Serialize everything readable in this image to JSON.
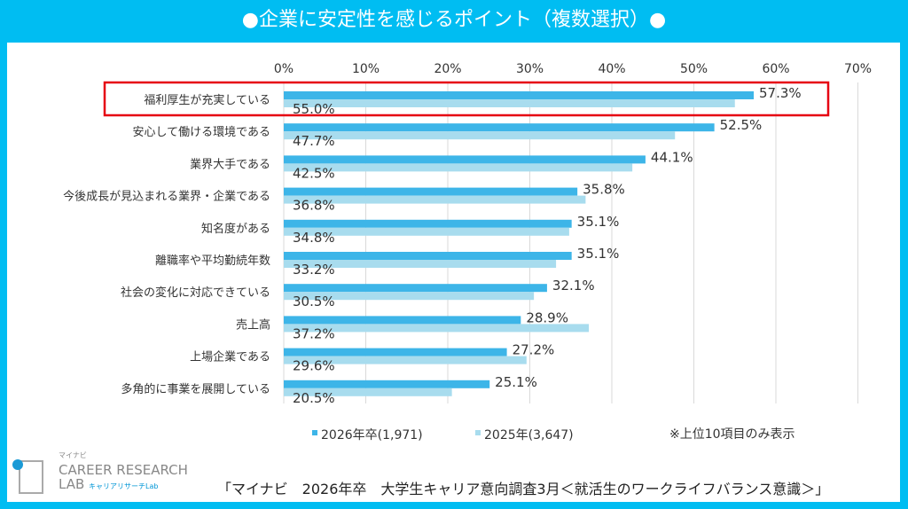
{
  "title": "●企業に安定性を感じるポイント（複数選択）●",
  "chart_data": {
    "type": "bar",
    "orientation": "horizontal",
    "categories": [
      "福利厚生が充実している",
      "安心して働ける環境である",
      "業界大手である",
      "今後成長が見込まれる業界・企業である",
      "知名度がある",
      "離職率や平均勤続年数",
      "社会の変化に対応できている",
      "売上高",
      "上場企業である",
      "多角的に事業を展開している"
    ],
    "series": [
      {
        "name": "2026年卒(1,971)",
        "color": "#3db5e8",
        "values": [
          57.3,
          52.5,
          44.1,
          35.8,
          35.1,
          35.1,
          32.1,
          28.9,
          27.2,
          25.1
        ]
      },
      {
        "name": "2025年(3,647)",
        "color": "#a8dcee",
        "values": [
          55.0,
          47.7,
          42.5,
          36.8,
          34.8,
          33.2,
          30.5,
          37.2,
          29.6,
          20.5
        ]
      }
    ],
    "xlim": [
      0,
      70
    ],
    "ticks": [
      "0%",
      "10%",
      "20%",
      "30%",
      "40%",
      "50%",
      "60%",
      "70%"
    ],
    "grid": true,
    "legend": "bottom",
    "highlight": "福利厚生が充実している",
    "highlight_color": "#e60012",
    "note": "※上位10項目のみ表示"
  },
  "logo": {
    "brand": "マイナビ",
    "line1": "CAREER RESEARCH",
    "line2": "LAB",
    "sub": "キャリアリサーチLab"
  },
  "source": "「マイナビ　2026年卒　大学生キャリア意向調査3月＜就活生のワークライフバランス意識＞」"
}
